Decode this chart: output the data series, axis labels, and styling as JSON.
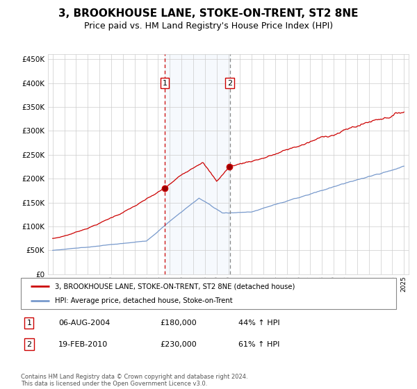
{
  "title": "3, BROOKHOUSE LANE, STOKE-ON-TRENT, ST2 8NE",
  "subtitle": "Price paid vs. HM Land Registry's House Price Index (HPI)",
  "title_fontsize": 11,
  "subtitle_fontsize": 9,
  "background_color": "#ffffff",
  "grid_color": "#cccccc",
  "plot_bg_color": "#ffffff",
  "red_line_color": "#cc0000",
  "blue_line_color": "#7799cc",
  "sale1_date_num": 2004.58,
  "sale2_date_num": 2010.12,
  "ylim_min": 0,
  "ylim_max": 460000,
  "footer": "Contains HM Land Registry data © Crown copyright and database right 2024.\nThis data is licensed under the Open Government Licence v3.0.",
  "legend_line1": "3, BROOKHOUSE LANE, STOKE-ON-TRENT, ST2 8NE (detached house)",
  "legend_line2": "HPI: Average price, detached house, Stoke-on-Trent",
  "table_row1": [
    "1",
    "06-AUG-2004",
    "£180,000",
    "44% ↑ HPI"
  ],
  "table_row2": [
    "2",
    "19-FEB-2010",
    "£230,000",
    "61% ↑ HPI"
  ]
}
